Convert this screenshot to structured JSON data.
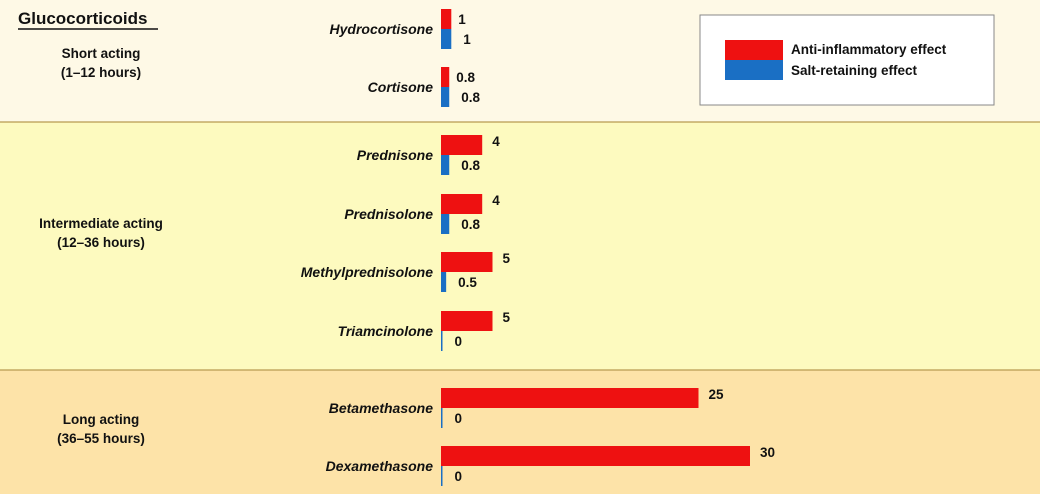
{
  "chart_data": {
    "type": "bar",
    "orientation": "horizontal",
    "title": "Glucocorticoids",
    "groups": [
      {
        "label_line1": "Short acting",
        "label_line2": "(1–12 hours)",
        "drugs": [
          {
            "name": "Hydrocortisone",
            "anti": 1,
            "anti_label": "1",
            "salt": 1,
            "salt_label": "1"
          },
          {
            "name": "Cortisone",
            "anti": 0.8,
            "anti_label": "0.8",
            "salt": 0.8,
            "salt_label": "0.8"
          }
        ]
      },
      {
        "label_line1": "Intermediate acting",
        "label_line2": "(12–36 hours)",
        "drugs": [
          {
            "name": "Prednisone",
            "anti": 4,
            "anti_label": "4",
            "salt": 0.8,
            "salt_label": "0.8"
          },
          {
            "name": "Prednisolone",
            "anti": 4,
            "anti_label": "4",
            "salt": 0.8,
            "salt_label": "0.8"
          },
          {
            "name": "Methylprednisolone",
            "anti": 5,
            "anti_label": "5",
            "salt": 0.5,
            "salt_label": "0.5"
          },
          {
            "name": "Triamcinolone",
            "anti": 5,
            "anti_label": "5",
            "salt": 0,
            "salt_label": "0"
          }
        ]
      },
      {
        "label_line1": "Long acting",
        "label_line2": "(36–55 hours)",
        "drugs": [
          {
            "name": "Betamethasone",
            "anti": 25,
            "anti_label": "25",
            "salt": 0,
            "salt_label": "0"
          },
          {
            "name": "Dexamethasone",
            "anti": 30,
            "anti_label": "30",
            "salt": 0,
            "salt_label": "0"
          }
        ]
      }
    ],
    "series": [
      {
        "key": "anti",
        "name": "Anti-inflammatory effect",
        "color": "#ee1111"
      },
      {
        "key": "salt",
        "name": "Salt-retaining effect",
        "color": "#1a6fc4"
      }
    ],
    "legend_position": "top-right",
    "grid": false
  },
  "colors": {
    "short_band": "#fef9e6",
    "intermediate_band": "#fdfabf",
    "long_band": "#fde3a8"
  }
}
